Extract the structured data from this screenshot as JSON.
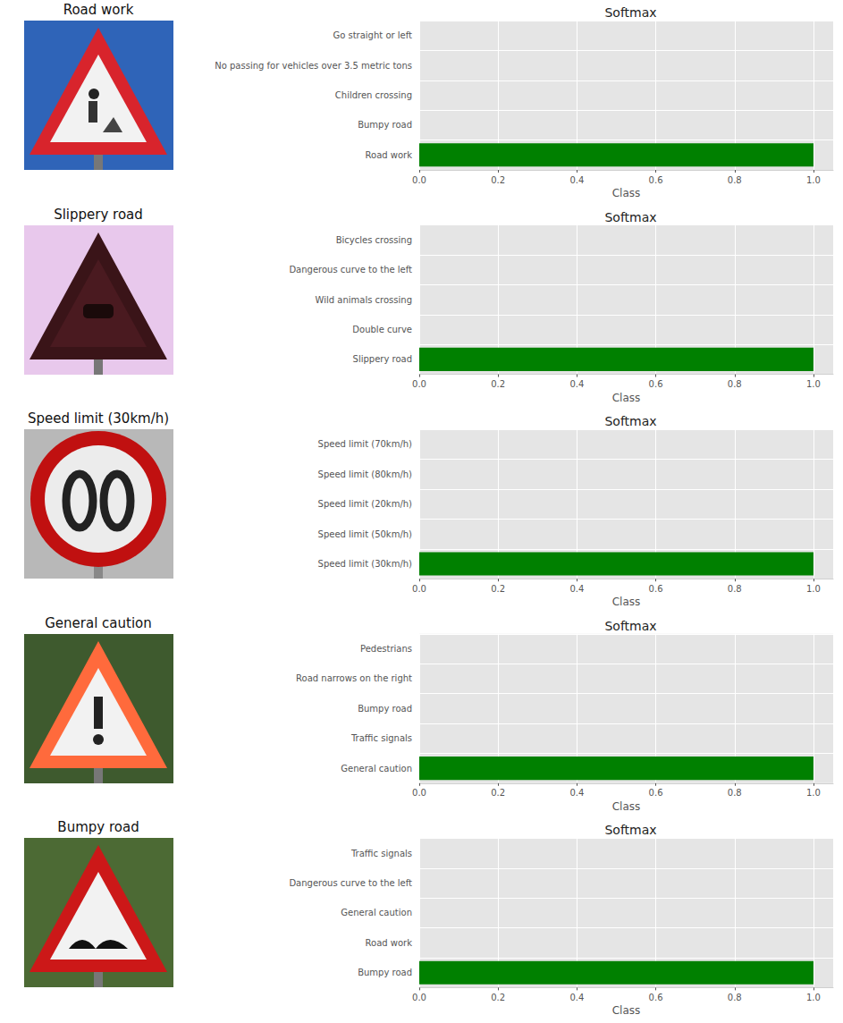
{
  "images": [
    {
      "title": "Road work"
    },
    {
      "title": "Slippery road"
    },
    {
      "title": "Speed limit (30km/h)"
    },
    {
      "title": "General caution"
    },
    {
      "title": "Bumpy road"
    }
  ],
  "chart_data": [
    {
      "type": "bar",
      "title": "Softmax",
      "orientation": "horizontal",
      "xlabel": "Class",
      "grid": true,
      "color": "#008000",
      "categories": [
        "Road work",
        "Bumpy road",
        "Children crossing",
        "No passing for vehicles over 3.5 metric tons",
        "Go straight or left"
      ],
      "values": [
        1.0,
        0,
        0,
        0,
        0
      ],
      "xlim": [
        0,
        1.05
      ],
      "xticks": [
        {
          "value": 0,
          "label": "0.0"
        },
        {
          "value": 0.2,
          "label": "0.2"
        },
        {
          "value": 0.4,
          "label": "0.4"
        },
        {
          "value": 0.6,
          "label": "0.6"
        },
        {
          "value": 0.8,
          "label": "0.8"
        },
        {
          "value": 1,
          "label": "1.0"
        }
      ]
    },
    {
      "type": "bar",
      "title": "Softmax",
      "orientation": "horizontal",
      "xlabel": "Class",
      "grid": true,
      "color": "#008000",
      "categories": [
        "Slippery road",
        "Double curve",
        "Wild animals crossing",
        "Dangerous curve to the left",
        "Bicycles crossing"
      ],
      "values": [
        1.0,
        0,
        0,
        0,
        0
      ],
      "xlim": [
        0,
        1.05
      ],
      "xticks": [
        {
          "value": 0,
          "label": "0.0"
        },
        {
          "value": 0.2,
          "label": "0.2"
        },
        {
          "value": 0.4,
          "label": "0.4"
        },
        {
          "value": 0.6,
          "label": "0.6"
        },
        {
          "value": 0.8,
          "label": "0.8"
        },
        {
          "value": 1,
          "label": "1.0"
        }
      ]
    },
    {
      "type": "bar",
      "title": "Softmax",
      "orientation": "horizontal",
      "xlabel": "Class",
      "grid": true,
      "color": "#008000",
      "categories": [
        "Speed limit (30km/h)",
        "Speed limit (50km/h)",
        "Speed limit (20km/h)",
        "Speed limit (80km/h)",
        "Speed limit (70km/h)"
      ],
      "values": [
        1.0,
        0,
        0,
        0,
        0
      ],
      "xlim": [
        0,
        1.05
      ],
      "xticks": [
        {
          "value": 0,
          "label": "0.0"
        },
        {
          "value": 0.2,
          "label": "0.2"
        },
        {
          "value": 0.4,
          "label": "0.4"
        },
        {
          "value": 0.6,
          "label": "0.6"
        },
        {
          "value": 0.8,
          "label": "0.8"
        },
        {
          "value": 1,
          "label": "1.0"
        }
      ]
    },
    {
      "type": "bar",
      "title": "Softmax",
      "orientation": "horizontal",
      "xlabel": "Class",
      "grid": true,
      "color": "#008000",
      "categories": [
        "General caution",
        "Traffic signals",
        "Bumpy road",
        "Road narrows on the right",
        "Pedestrians"
      ],
      "values": [
        1.0,
        0,
        0,
        0,
        0
      ],
      "xlim": [
        0,
        1.05
      ],
      "xticks": [
        {
          "value": 0,
          "label": "0.0"
        },
        {
          "value": 0.2,
          "label": "0.2"
        },
        {
          "value": 0.4,
          "label": "0.4"
        },
        {
          "value": 0.6,
          "label": "0.6"
        },
        {
          "value": 0.8,
          "label": "0.8"
        },
        {
          "value": 1,
          "label": "1.0"
        }
      ]
    },
    {
      "type": "bar",
      "title": "Softmax",
      "orientation": "horizontal",
      "xlabel": "Class",
      "grid": true,
      "color": "#008000",
      "categories": [
        "Bumpy road",
        "Road work",
        "General caution",
        "Dangerous curve to the left",
        "Traffic signals"
      ],
      "values": [
        1.0,
        0,
        0,
        0,
        0
      ],
      "xlim": [
        0,
        1.05
      ],
      "xticks": [
        {
          "value": 0,
          "label": "0.0"
        },
        {
          "value": 0.2,
          "label": "0.2"
        },
        {
          "value": 0.4,
          "label": "0.4"
        },
        {
          "value": 0.6,
          "label": "0.6"
        },
        {
          "value": 0.8,
          "label": "0.8"
        },
        {
          "value": 1,
          "label": "1.0"
        }
      ]
    }
  ]
}
